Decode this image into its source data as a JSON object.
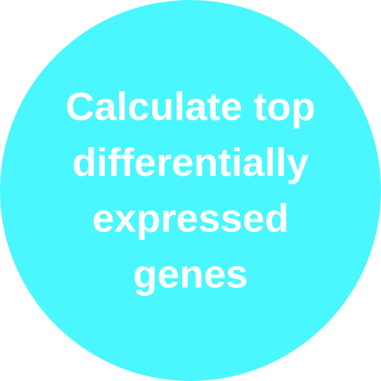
{
  "node": {
    "lines": [
      "Calculate top",
      "differentially",
      "expressed",
      "genes"
    ],
    "fill_color": "#4AF7FF",
    "text_color": "#FFFFFF",
    "background_color": "#FFFFFF"
  }
}
